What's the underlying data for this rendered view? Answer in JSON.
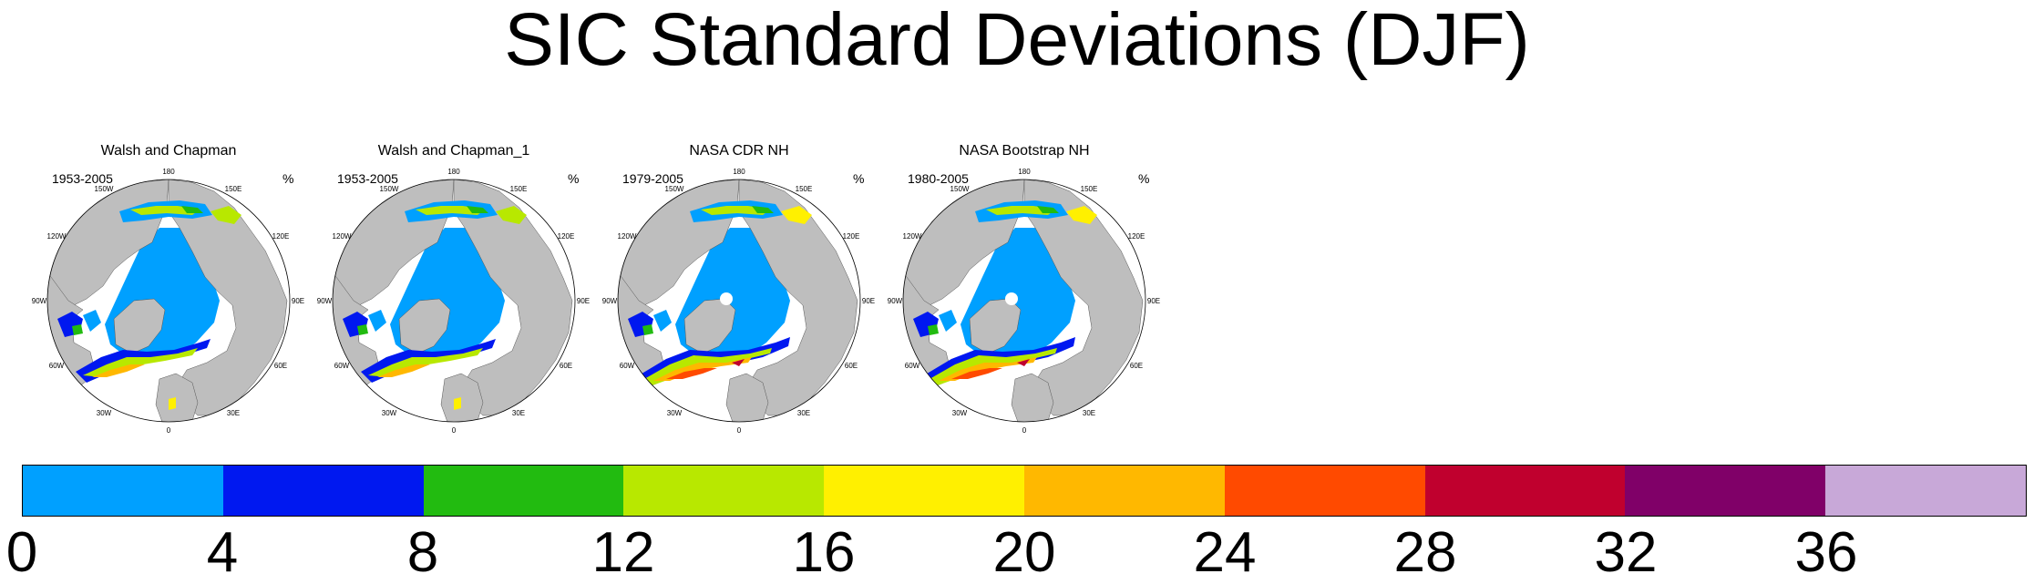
{
  "title": "SIC Standard Deviations (DJF)",
  "chart_data": {
    "type": "heatmap",
    "projection": "north-polar-stereographic",
    "variable": "sea ice concentration standard deviation",
    "season": "DJF",
    "panels": [
      {
        "title": "Walsh and Chapman",
        "period": "1953-2005",
        "unit": "%"
      },
      {
        "title": "Walsh and Chapman_1",
        "period": "1953-2005",
        "unit": "%"
      },
      {
        "title": "NASA CDR NH",
        "period": "1979-2005",
        "unit": "%"
      },
      {
        "title": "NASA Bootstrap NH",
        "period": "1980-2005",
        "unit": "%"
      }
    ],
    "longitude_labels": [
      "180",
      "150E",
      "120E",
      "90E",
      "60E",
      "30E",
      "0",
      "30W",
      "60W",
      "90W",
      "120W",
      "150W"
    ],
    "colorbar": {
      "levels": [
        0,
        4,
        8,
        12,
        16,
        20,
        24,
        28,
        32,
        36
      ],
      "tick_labels": [
        "0",
        "4",
        "8",
        "12",
        "16",
        "20",
        "24",
        "28",
        "32",
        "36"
      ],
      "colors": [
        "#00a0ff",
        "#0018f0",
        "#22bb10",
        "#b8e800",
        "#fff000",
        "#ffb800",
        "#ff4a00",
        "#c0002e",
        "#800068",
        "#c8a8d8"
      ]
    }
  }
}
